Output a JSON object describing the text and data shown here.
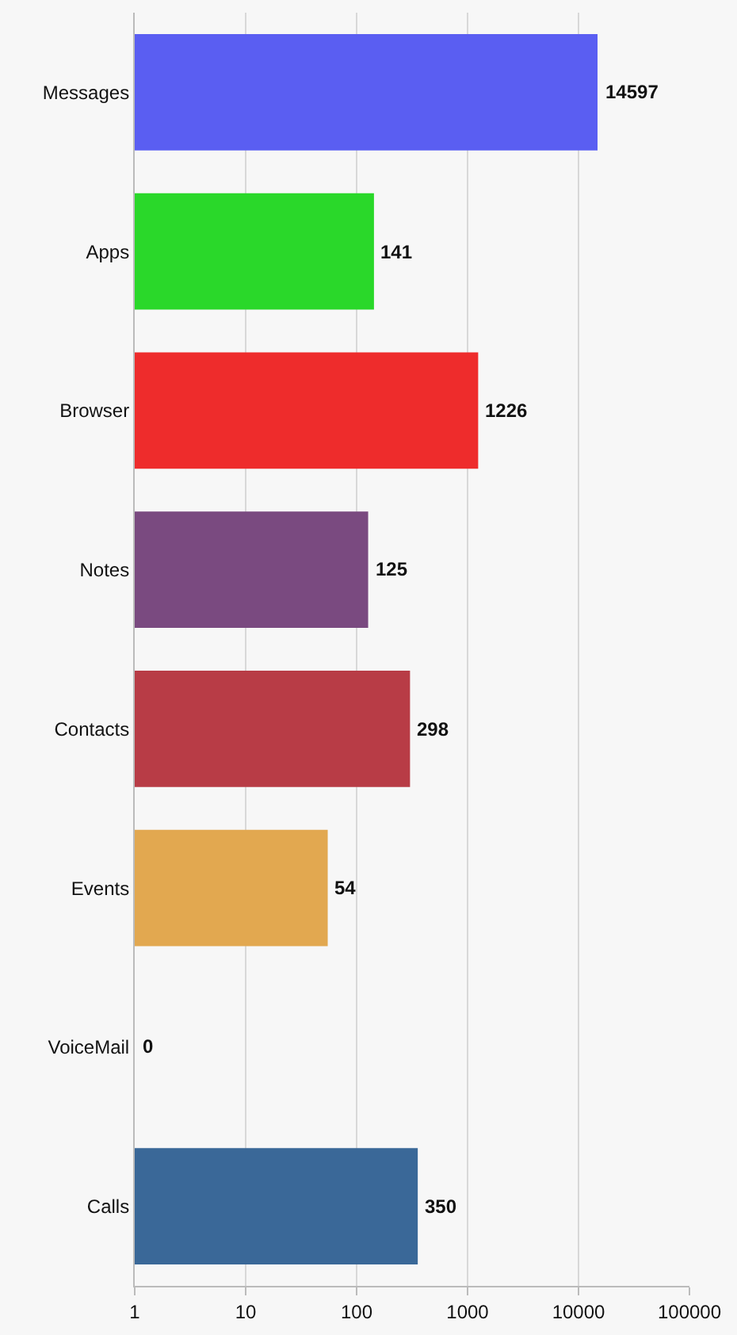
{
  "chart_data": {
    "type": "bar",
    "orientation": "horizontal",
    "log": "x",
    "categories": [
      "Messages",
      "Apps",
      "Browser",
      "Notes",
      "Contacts",
      "Events",
      "VoiceMail",
      "Calls"
    ],
    "values": [
      14597,
      141,
      1226,
      125,
      298,
      54,
      null,
      350
    ],
    "value_labels": [
      "14597",
      "141",
      "1226",
      "125",
      "298",
      "54",
      "0",
      "350"
    ],
    "colors": [
      "#5a5ef2",
      "#2ad82a",
      "#ee2c2c",
      "#7a4a80",
      "#b83c46",
      "#e2a850",
      "#8a8a8a",
      "#3a6898"
    ],
    "xlim": [
      1,
      100000
    ],
    "xticks": [
      1,
      10,
      100,
      1000,
      10000,
      100000
    ],
    "grid": "x"
  }
}
